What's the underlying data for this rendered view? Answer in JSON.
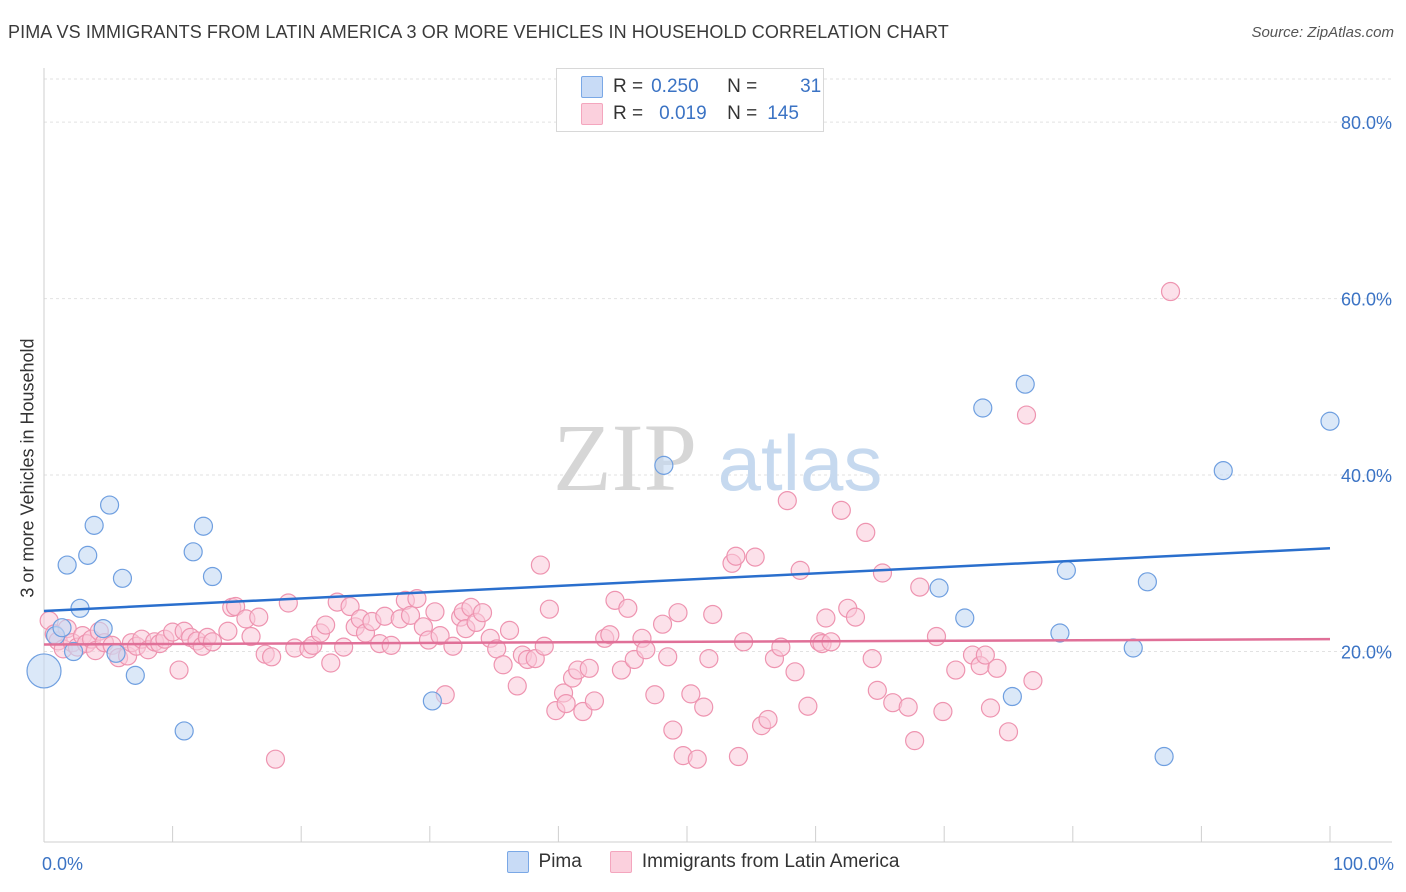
{
  "title": "PIMA VS IMMIGRANTS FROM LATIN AMERICA 3 OR MORE VEHICLES IN HOUSEHOLD CORRELATION CHART",
  "source": "Source: ZipAtlas.com",
  "watermark": {
    "zip": "ZIP",
    "atlas": "atlas"
  },
  "legend": {
    "rows": [
      {
        "r_label": "R =",
        "r_value": "0.250",
        "n_label": "N =",
        "n_value": "31"
      },
      {
        "r_label": "R =",
        "r_value": "0.019",
        "n_label": "N =",
        "n_value": "145"
      }
    ]
  },
  "chart_data": {
    "type": "scatter",
    "xlabel": "",
    "ylabel": "3 or more Vehicles in Household",
    "xlim": [
      0,
      100
    ],
    "ylim": [
      0,
      85
    ],
    "x_tick_labels": [
      "0.0%",
      "100.0%"
    ],
    "y_tick_labels": [
      "20.0%",
      "40.0%",
      "60.0%",
      "80.0%"
    ],
    "y_ticks": [
      20,
      40,
      60,
      80
    ],
    "grid": true,
    "legend_position": "bottom-center",
    "colors": {
      "pima": "#7aa8e6",
      "latin": "#f4a6be",
      "pima_line": "#2a6fcd",
      "latin_line": "#e07098",
      "tick_text": "#3b73c4"
    },
    "series": [
      {
        "name": "Pima",
        "trend": [
          [
            0,
            24.6
          ],
          [
            100,
            31.7
          ]
        ],
        "points": [
          [
            0.0,
            17.8
          ],
          [
            0.9,
            21.8
          ],
          [
            1.4,
            22.7
          ],
          [
            1.8,
            29.8
          ],
          [
            2.3,
            20.0
          ],
          [
            2.8,
            24.9
          ],
          [
            3.4,
            30.9
          ],
          [
            3.9,
            34.3
          ],
          [
            4.6,
            22.6
          ],
          [
            5.1,
            36.6
          ],
          [
            5.6,
            19.8
          ],
          [
            6.1,
            28.3
          ],
          [
            7.1,
            17.3
          ],
          [
            10.9,
            11.0
          ],
          [
            11.6,
            31.3
          ],
          [
            12.4,
            34.2
          ],
          [
            13.1,
            28.5
          ],
          [
            30.2,
            14.4
          ],
          [
            48.2,
            41.1
          ],
          [
            69.6,
            27.2
          ],
          [
            71.6,
            23.8
          ],
          [
            73.0,
            47.6
          ],
          [
            76.3,
            50.3
          ],
          [
            75.3,
            14.9
          ],
          [
            79.0,
            22.1
          ],
          [
            79.5,
            29.2
          ],
          [
            84.7,
            20.4
          ],
          [
            85.8,
            27.9
          ],
          [
            87.1,
            8.1
          ],
          [
            91.7,
            40.5
          ],
          [
            100.0,
            46.1
          ]
        ]
      },
      {
        "name": "Immigrants from Latin America",
        "trend": [
          [
            0,
            20.8
          ],
          [
            100,
            21.4
          ]
        ],
        "points": [
          [
            0.4,
            23.5
          ],
          [
            0.8,
            22.0
          ],
          [
            1.1,
            21.2
          ],
          [
            1.5,
            20.3
          ],
          [
            1.8,
            22.6
          ],
          [
            2.2,
            21.0
          ],
          [
            2.6,
            20.5
          ],
          [
            3.0,
            21.8
          ],
          [
            3.3,
            20.9
          ],
          [
            3.7,
            21.4
          ],
          [
            4.0,
            20.1
          ],
          [
            4.3,
            22.3
          ],
          [
            4.7,
            21.0
          ],
          [
            5.3,
            20.7
          ],
          [
            5.8,
            19.3
          ],
          [
            6.5,
            19.5
          ],
          [
            6.8,
            21.0
          ],
          [
            7.2,
            20.6
          ],
          [
            7.6,
            21.4
          ],
          [
            8.1,
            20.2
          ],
          [
            8.6,
            21.1
          ],
          [
            9.0,
            20.9
          ],
          [
            9.4,
            21.4
          ],
          [
            10.0,
            22.2
          ],
          [
            10.5,
            17.9
          ],
          [
            10.9,
            22.3
          ],
          [
            11.4,
            21.6
          ],
          [
            11.9,
            21.2
          ],
          [
            12.3,
            20.6
          ],
          [
            12.7,
            21.6
          ],
          [
            13.1,
            21.1
          ],
          [
            14.3,
            22.3
          ],
          [
            14.6,
            25.0
          ],
          [
            14.9,
            25.1
          ],
          [
            15.7,
            23.7
          ],
          [
            16.1,
            21.7
          ],
          [
            16.7,
            23.9
          ],
          [
            17.2,
            19.7
          ],
          [
            17.7,
            19.4
          ],
          [
            18.0,
            7.8
          ],
          [
            19.0,
            25.5
          ],
          [
            19.5,
            20.4
          ],
          [
            20.6,
            20.3
          ],
          [
            20.9,
            20.7
          ],
          [
            21.5,
            22.1
          ],
          [
            21.9,
            23.0
          ],
          [
            22.3,
            18.7
          ],
          [
            22.8,
            25.6
          ],
          [
            23.3,
            20.5
          ],
          [
            23.8,
            25.1
          ],
          [
            24.2,
            22.8
          ],
          [
            24.6,
            23.7
          ],
          [
            25.0,
            22.1
          ],
          [
            25.5,
            23.4
          ],
          [
            26.1,
            20.9
          ],
          [
            26.5,
            24.0
          ],
          [
            27.0,
            20.7
          ],
          [
            27.7,
            23.7
          ],
          [
            28.1,
            25.8
          ],
          [
            28.5,
            24.1
          ],
          [
            29.0,
            26.0
          ],
          [
            29.5,
            22.8
          ],
          [
            29.9,
            21.3
          ],
          [
            30.4,
            24.5
          ],
          [
            30.8,
            21.8
          ],
          [
            31.2,
            15.1
          ],
          [
            31.8,
            20.6
          ],
          [
            32.4,
            23.9
          ],
          [
            32.6,
            24.5
          ],
          [
            32.8,
            22.6
          ],
          [
            33.2,
            25.0
          ],
          [
            33.6,
            23.3
          ],
          [
            34.1,
            24.4
          ],
          [
            34.7,
            21.5
          ],
          [
            35.2,
            20.3
          ],
          [
            35.7,
            18.5
          ],
          [
            36.2,
            22.4
          ],
          [
            36.8,
            16.1
          ],
          [
            37.2,
            19.6
          ],
          [
            37.6,
            19.1
          ],
          [
            38.2,
            19.2
          ],
          [
            38.6,
            29.8
          ],
          [
            38.9,
            20.6
          ],
          [
            39.3,
            24.8
          ],
          [
            39.8,
            13.3
          ],
          [
            40.4,
            15.3
          ],
          [
            40.6,
            14.1
          ],
          [
            41.1,
            17.0
          ],
          [
            41.5,
            17.9
          ],
          [
            41.9,
            13.2
          ],
          [
            42.4,
            18.1
          ],
          [
            42.8,
            14.4
          ],
          [
            43.6,
            21.5
          ],
          [
            44.0,
            21.9
          ],
          [
            44.4,
            25.8
          ],
          [
            44.9,
            17.9
          ],
          [
            45.4,
            24.9
          ],
          [
            45.9,
            19.1
          ],
          [
            46.5,
            21.5
          ],
          [
            46.8,
            20.2
          ],
          [
            47.5,
            15.1
          ],
          [
            48.1,
            23.1
          ],
          [
            48.5,
            19.4
          ],
          [
            48.9,
            11.1
          ],
          [
            49.3,
            24.4
          ],
          [
            49.7,
            8.2
          ],
          [
            50.3,
            15.2
          ],
          [
            50.8,
            7.8
          ],
          [
            51.3,
            13.7
          ],
          [
            51.7,
            19.2
          ],
          [
            52.0,
            24.2
          ],
          [
            53.5,
            30.0
          ],
          [
            53.8,
            30.8
          ],
          [
            54.0,
            8.1
          ],
          [
            54.4,
            21.1
          ],
          [
            55.3,
            30.7
          ],
          [
            55.8,
            11.6
          ],
          [
            56.3,
            12.3
          ],
          [
            56.8,
            19.2
          ],
          [
            57.3,
            20.5
          ],
          [
            57.8,
            37.1
          ],
          [
            58.4,
            17.7
          ],
          [
            58.8,
            29.2
          ],
          [
            59.4,
            13.8
          ],
          [
            60.3,
            21.1
          ],
          [
            60.5,
            20.9
          ],
          [
            60.8,
            23.8
          ],
          [
            61.2,
            21.1
          ],
          [
            62.0,
            36.0
          ],
          [
            62.5,
            24.9
          ],
          [
            63.1,
            23.9
          ],
          [
            63.9,
            33.5
          ],
          [
            64.4,
            19.2
          ],
          [
            64.8,
            15.6
          ],
          [
            65.2,
            28.9
          ],
          [
            66.0,
            14.2
          ],
          [
            67.2,
            13.7
          ],
          [
            67.7,
            9.9
          ],
          [
            68.1,
            27.3
          ],
          [
            69.4,
            21.7
          ],
          [
            69.9,
            13.2
          ],
          [
            70.9,
            17.9
          ],
          [
            72.2,
            19.6
          ],
          [
            72.8,
            18.4
          ],
          [
            73.2,
            19.6
          ],
          [
            73.6,
            13.6
          ],
          [
            74.1,
            18.1
          ],
          [
            75.0,
            10.9
          ],
          [
            76.4,
            46.8
          ],
          [
            76.9,
            16.7
          ],
          [
            87.6,
            60.8
          ]
        ]
      }
    ]
  }
}
